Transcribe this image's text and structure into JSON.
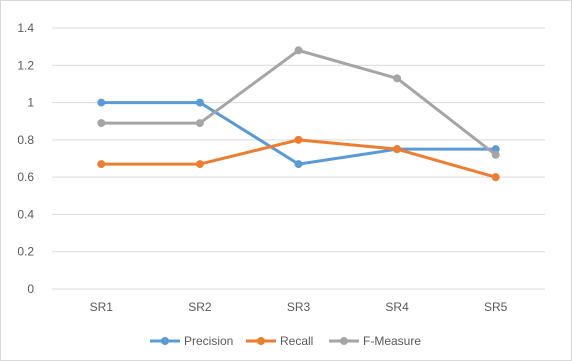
{
  "chart_data": {
    "type": "line",
    "categories": [
      "SR1",
      "SR2",
      "SR3",
      "SR4",
      "SR5"
    ],
    "series": [
      {
        "name": "Precision",
        "color": "#5b9bd5",
        "values": [
          1.0,
          1.0,
          0.67,
          0.75,
          0.75
        ]
      },
      {
        "name": "Recall",
        "color": "#ed7d31",
        "values": [
          0.67,
          0.67,
          0.8,
          0.75,
          0.6
        ]
      },
      {
        "name": "F-Measure",
        "color": "#a5a5a5",
        "values": [
          0.89,
          0.89,
          1.28,
          1.13,
          0.72
        ]
      }
    ],
    "ylim": [
      0,
      1.4
    ],
    "yticks": [
      "0",
      "0.2",
      "0.4",
      "0.6",
      "0.8",
      "1",
      "1.2",
      "1.4"
    ],
    "grid": true,
    "legend": "bottom"
  }
}
